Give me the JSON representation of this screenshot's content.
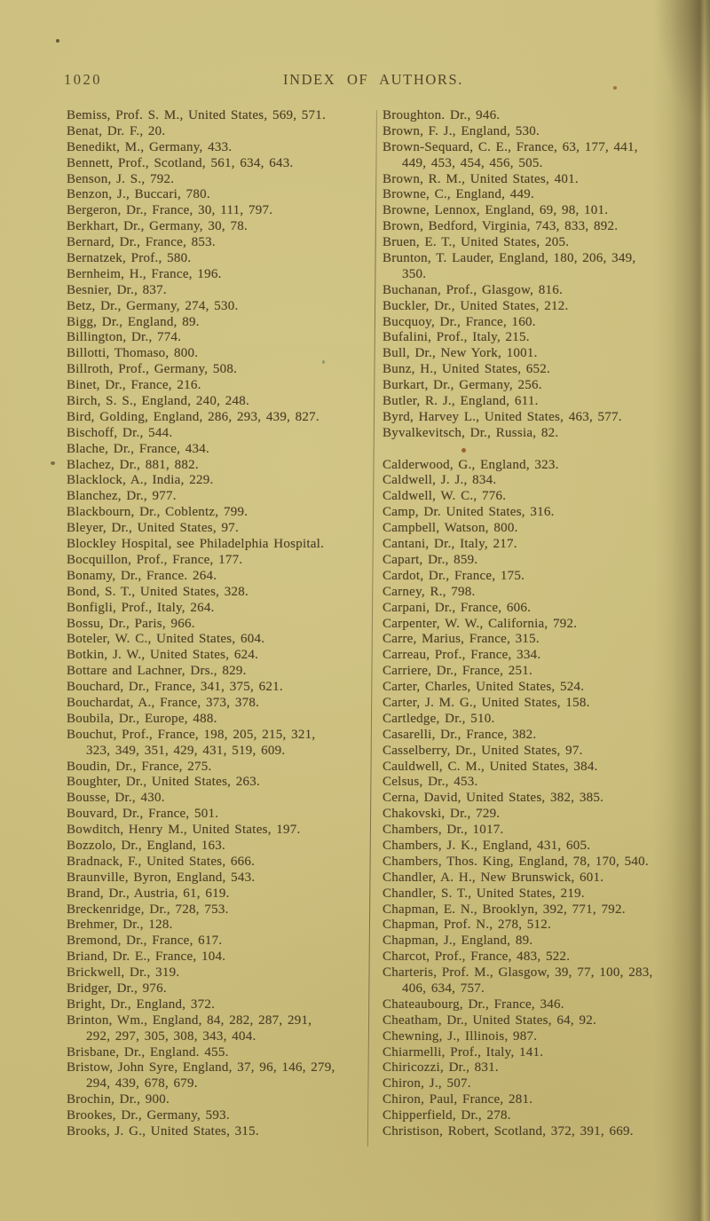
{
  "page": {
    "page_number": "1020",
    "title": "INDEX OF AUTHORS.",
    "paper_color": "#cbbe7d",
    "ink_color": "#4d4126"
  },
  "index": {
    "left_column": [
      {
        "text": "Bemiss, Prof. S. M., United States, 569, 571.",
        "indent": false
      },
      {
        "text": "Benat, Dr. F., 20.",
        "indent": false
      },
      {
        "text": "Benedikt, M., Germany, 433.",
        "indent": false
      },
      {
        "text": "Bennett, Prof., Scotland, 561, 634, 643.",
        "indent": false
      },
      {
        "text": "Benson, J. S., 792.",
        "indent": false
      },
      {
        "text": "Benzon, J., Buccari, 780.",
        "indent": false
      },
      {
        "text": "Bergeron, Dr., France, 30, 111, 797.",
        "indent": false
      },
      {
        "text": "Berkhart, Dr., Germany, 30, 78.",
        "indent": false
      },
      {
        "text": "Bernard, Dr., France, 853.",
        "indent": false
      },
      {
        "text": "Bernatzek, Prof., 580.",
        "indent": false
      },
      {
        "text": "Bernheim, H., France, 196.",
        "indent": false
      },
      {
        "text": "Besnier, Dr., 837.",
        "indent": false
      },
      {
        "text": "Betz, Dr., Germany, 274, 530.",
        "indent": false
      },
      {
        "text": "Bigg, Dr., England, 89.",
        "indent": false
      },
      {
        "text": "Billington, Dr., 774.",
        "indent": false
      },
      {
        "text": "Billotti, Thomaso, 800.",
        "indent": false
      },
      {
        "text": "Billroth, Prof., Germany, 508.",
        "indent": false
      },
      {
        "text": "Binet, Dr., France, 216.",
        "indent": false
      },
      {
        "text": "Birch, S. S., England, 240, 248.",
        "indent": false
      },
      {
        "text": "Bird, Golding, England, 286, 293, 439, 827.",
        "indent": false
      },
      {
        "text": "Bischoff, Dr., 544.",
        "indent": false
      },
      {
        "text": "Blache, Dr., France, 434.",
        "indent": false
      },
      {
        "text": "Blachez, Dr., 881, 882.",
        "indent": false
      },
      {
        "text": "Blacklock, A., India, 229.",
        "indent": false
      },
      {
        "text": "Blanchez, Dr., 977.",
        "indent": false
      },
      {
        "text": "Blackbourn, Dr., Coblentz, 799.",
        "indent": false
      },
      {
        "text": "Bleyer, Dr., United States, 97.",
        "indent": false
      },
      {
        "text": "Blockley Hospital, see Philadelphia Hospital.",
        "indent": false
      },
      {
        "text": "Bocquillon, Prof., France, 177.",
        "indent": false
      },
      {
        "text": "Bonamy, Dr., France. 264.",
        "indent": false
      },
      {
        "text": "Bond, S. T., United States, 328.",
        "indent": false
      },
      {
        "text": "Bonfigli, Prof., Italy, 264.",
        "indent": false
      },
      {
        "text": "Bossu, Dr., Paris, 966.",
        "indent": false
      },
      {
        "text": "Boteler, W. C., United States, 604.",
        "indent": false
      },
      {
        "text": "Botkin, J. W., United States, 624.",
        "indent": false
      },
      {
        "text": "Bottare and Lachner, Drs., 829.",
        "indent": false
      },
      {
        "text": "Bouchard, Dr., France, 341, 375, 621.",
        "indent": false
      },
      {
        "text": "Bouchardat, A., France, 373, 378.",
        "indent": false
      },
      {
        "text": "Boubila, Dr., Europe, 488.",
        "indent": false
      },
      {
        "text": "Bouchut, Prof., France, 198, 205, 215, 321,",
        "indent": false
      },
      {
        "text": "323, 349, 351, 429, 431, 519, 609.",
        "indent": true
      },
      {
        "text": "Boudin, Dr., France, 275.",
        "indent": false
      },
      {
        "text": "Boughter, Dr., United States, 263.",
        "indent": false
      },
      {
        "text": "Bousse, Dr., 430.",
        "indent": false
      },
      {
        "text": "Bouvard, Dr., France, 501.",
        "indent": false
      },
      {
        "text": "Bowditch, Henry M., United States, 197.",
        "indent": false
      },
      {
        "text": "Bozzolo, Dr., England, 163.",
        "indent": false
      },
      {
        "text": "Bradnack, F., United States, 666.",
        "indent": false
      },
      {
        "text": "Braunville, Byron, England, 543.",
        "indent": false
      },
      {
        "text": "Brand, Dr., Austria, 61, 619.",
        "indent": false
      },
      {
        "text": "Breckenridge, Dr., 728, 753.",
        "indent": false
      },
      {
        "text": "Brehmer, Dr., 128.",
        "indent": false
      },
      {
        "text": "Bremond, Dr., France, 617.",
        "indent": false
      },
      {
        "text": "Briand, Dr. E., France, 104.",
        "indent": false
      },
      {
        "text": "Brickwell, Dr., 319.",
        "indent": false
      },
      {
        "text": "Bridger, Dr., 976.",
        "indent": false
      },
      {
        "text": "Bright, Dr., England, 372.",
        "indent": false
      },
      {
        "text": "Brinton, Wm., England, 84, 282, 287, 291,",
        "indent": false
      },
      {
        "text": "292, 297, 305, 308, 343, 404.",
        "indent": true
      },
      {
        "text": "Brisbane, Dr., England. 455.",
        "indent": false
      },
      {
        "text": "Bristow, John Syre, England, 37, 96, 146, 279,",
        "indent": false
      },
      {
        "text": "294, 439, 678, 679.",
        "indent": true
      },
      {
        "text": "Brochin, Dr., 900.",
        "indent": false
      },
      {
        "text": "Brookes, Dr., Germany, 593.",
        "indent": false
      },
      {
        "text": "Brooks, J. G., United States, 315.",
        "indent": false
      }
    ],
    "right_column": [
      {
        "text": "Broughton. Dr., 946.",
        "indent": false
      },
      {
        "text": "Brown, F. J., England, 530.",
        "indent": false
      },
      {
        "text": "Brown-Sequard, C. E., France, 63, 177, 441,",
        "indent": false
      },
      {
        "text": "449, 453, 454, 456, 505.",
        "indent": true
      },
      {
        "text": "Brown, R. M., United States, 401.",
        "indent": false
      },
      {
        "text": "Browne, C., England, 449.",
        "indent": false
      },
      {
        "text": "Browne, Lennox, England, 69, 98, 101.",
        "indent": false
      },
      {
        "text": "Brown, Bedford, Virginia, 743, 833, 892.",
        "indent": false
      },
      {
        "text": "Bruen, E. T., United States, 205.",
        "indent": false
      },
      {
        "text": "Brunton, T. Lauder, England, 180, 206, 349,",
        "indent": false
      },
      {
        "text": "350.",
        "indent": true
      },
      {
        "text": "Buchanan, Prof., Glasgow, 816.",
        "indent": false
      },
      {
        "text": "Buckler, Dr., United States, 212.",
        "indent": false
      },
      {
        "text": "Bucquoy, Dr., France, 160.",
        "indent": false
      },
      {
        "text": "Bufalini, Prof., Italy, 215.",
        "indent": false
      },
      {
        "text": "Bull, Dr., New York, 1001.",
        "indent": false
      },
      {
        "text": "Bunz, H., United States, 652.",
        "indent": false
      },
      {
        "text": "Burkart, Dr., Germany, 256.",
        "indent": false
      },
      {
        "text": "Butler, R. J., England, 611.",
        "indent": false
      },
      {
        "text": "Byrd, Harvey L., United States, 463, 577.",
        "indent": false
      },
      {
        "text": "Byvalkevitsch, Dr., Russia, 82.",
        "indent": false
      },
      {
        "text": "",
        "indent": false
      },
      {
        "text": "Calderwood, G., England, 323.",
        "indent": false
      },
      {
        "text": "Caldwell, J. J., 834.",
        "indent": false
      },
      {
        "text": "Caldwell, W. C., 776.",
        "indent": false
      },
      {
        "text": "Camp, Dr. United States, 316.",
        "indent": false
      },
      {
        "text": "Campbell, Watson, 800.",
        "indent": false
      },
      {
        "text": "Cantani, Dr., Italy, 217.",
        "indent": false
      },
      {
        "text": "Capart, Dr., 859.",
        "indent": false
      },
      {
        "text": "Cardot, Dr., France, 175.",
        "indent": false
      },
      {
        "text": "Carney, R., 798.",
        "indent": false
      },
      {
        "text": "Carpani, Dr., France, 606.",
        "indent": false
      },
      {
        "text": "Carpenter, W. W., California, 792.",
        "indent": false
      },
      {
        "text": "Carre, Marius, France, 315.",
        "indent": false
      },
      {
        "text": "Carreau, Prof., France, 334.",
        "indent": false
      },
      {
        "text": "Carriere, Dr., France, 251.",
        "indent": false
      },
      {
        "text": "Carter, Charles, United States, 524.",
        "indent": false
      },
      {
        "text": "Carter, J. M. G., United States, 158.",
        "indent": false
      },
      {
        "text": "Cartledge, Dr., 510.",
        "indent": false
      },
      {
        "text": "Casarelli, Dr., France, 382.",
        "indent": false
      },
      {
        "text": "Casselberry, Dr., United States, 97.",
        "indent": false
      },
      {
        "text": "Cauldwell, C. M., United States, 384.",
        "indent": false
      },
      {
        "text": "Celsus, Dr., 453.",
        "indent": false
      },
      {
        "text": "Cerna, David, United States, 382, 385.",
        "indent": false
      },
      {
        "text": "Chakovski, Dr., 729.",
        "indent": false
      },
      {
        "text": "Chambers, Dr., 1017.",
        "indent": false
      },
      {
        "text": "Chambers, J. K., England, 431, 605.",
        "indent": false
      },
      {
        "text": "Chambers, Thos. King, England, 78, 170, 540.",
        "indent": false
      },
      {
        "text": "Chandler, A. H., New Brunswick, 601.",
        "indent": false
      },
      {
        "text": "Chandler, S. T., United States, 219.",
        "indent": false
      },
      {
        "text": "Chapman, E. N., Brooklyn, 392, 771, 792.",
        "indent": false
      },
      {
        "text": "Chapman, Prof. N., 278, 512.",
        "indent": false
      },
      {
        "text": "Chapman, J., England, 89.",
        "indent": false
      },
      {
        "text": "Charcot, Prof., France, 483, 522.",
        "indent": false
      },
      {
        "text": "Charteris, Prof. M., Glasgow, 39, 77, 100, 283,",
        "indent": false
      },
      {
        "text": "406, 634, 757.",
        "indent": true
      },
      {
        "text": "Chateaubourg, Dr., France, 346.",
        "indent": false
      },
      {
        "text": "Cheatham, Dr., United States, 64, 92.",
        "indent": false
      },
      {
        "text": "Chewning, J., Illinois, 987.",
        "indent": false
      },
      {
        "text": "Chiarmelli, Prof., Italy, 141.",
        "indent": false
      },
      {
        "text": "Chiricozzi, Dr., 831.",
        "indent": false
      },
      {
        "text": "Chiron, J., 507.",
        "indent": false
      },
      {
        "text": "Chiron, Paul, France, 281.",
        "indent": false
      },
      {
        "text": "Chipperfield, Dr., 278.",
        "indent": false
      },
      {
        "text": "Christison, Robert, Scotland, 372, 391, 669.",
        "indent": false
      }
    ]
  }
}
